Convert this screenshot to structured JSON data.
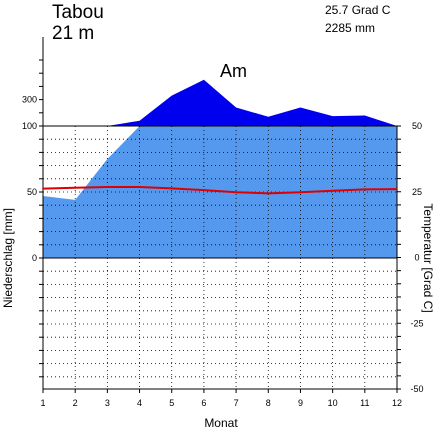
{
  "header": {
    "station": "Tabou",
    "elevation": "21 m",
    "mean_temp": "25.7 Grad C",
    "annual_precip": "2285 mm"
  },
  "chart_data": {
    "type": "area",
    "climate_class": "Am",
    "x": [
      1,
      2,
      3,
      4,
      5,
      6,
      7,
      8,
      9,
      10,
      11,
      12
    ],
    "xlabel": "Monat",
    "ylabel_left": "Niederschlag [mm]",
    "ylabel_right": "Temperatur [Grad C]",
    "x_ticks": [
      "1",
      "2",
      "3",
      "4",
      "5",
      "6",
      "7",
      "8",
      "9",
      "10",
      "11",
      "12"
    ],
    "left_ticks": [
      "0",
      "50",
      "100",
      "300"
    ],
    "right_ticks": [
      "-50",
      "-25",
      "0",
      "25",
      "50"
    ],
    "xlim": [
      1,
      12
    ],
    "temp_lim": [
      -50,
      50
    ],
    "series": [
      {
        "name": "Niederschlag",
        "unit": "mm",
        "values": [
          47,
          44,
          75,
          140,
          330,
          450,
          240,
          170,
          240,
          175,
          180,
          100
        ],
        "color": "#5599ee"
      },
      {
        "name": "Temperatur",
        "unit": "Grad C",
        "values": [
          26.2,
          26.5,
          26.8,
          26.8,
          26.3,
          25.6,
          24.8,
          24.4,
          24.8,
          25.4,
          25.9,
          26.0
        ],
        "color": "#dd0000"
      }
    ],
    "colors": {
      "precip_light": "#5599ee",
      "precip_dark": "#0000ee",
      "temp": "#dd0000"
    }
  }
}
